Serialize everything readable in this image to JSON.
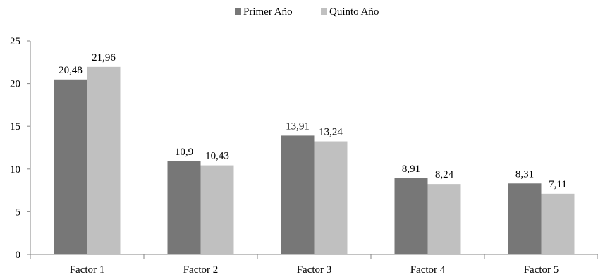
{
  "chart_data": {
    "type": "bar",
    "categories": [
      "Factor 1",
      "Factor 2",
      "Factor 3",
      "Factor 4",
      "Factor 5"
    ],
    "series": [
      {
        "name": "Primer Año",
        "values": [
          20.48,
          10.9,
          13.91,
          8.91,
          8.31
        ],
        "labels": [
          "20,48",
          "10,9",
          "13,91",
          "8,91",
          "8,31"
        ],
        "color": "#777777"
      },
      {
        "name": "Quinto Año",
        "values": [
          21.96,
          10.43,
          13.24,
          8.24,
          7.11
        ],
        "labels": [
          "21,96",
          "10,43",
          "13,24",
          "8,24",
          "7,11"
        ],
        "color": "#c0c0c0"
      }
    ],
    "yticks": [
      "0",
      "5",
      "10",
      "15",
      "20",
      "25"
    ],
    "ylim": [
      0,
      25
    ],
    "legend_position": "top-center",
    "grid": false
  }
}
